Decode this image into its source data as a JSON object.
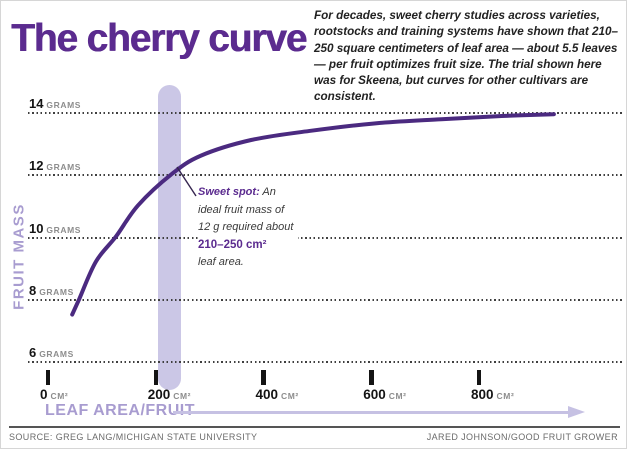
{
  "page": {
    "title": "The cherry curve",
    "intro": "For decades, sweet cherry studies across varieties, rootstocks and training systems have shown that 210–250 square centimeters of leaf area — about 5.5 leaves — per fruit optimizes fruit size. The trial shown here was for Skeena, but curves for other cultivars are consistent.",
    "source_left": "SOURCE: GREG LANG/MICHIGAN STATE UNIVERSITY",
    "credit_right": "JARED JOHNSON/GOOD FRUIT GROWER"
  },
  "axes": {
    "y_label": "FRUIT MASS",
    "y_tick_suffix": "GRAMS",
    "x_label": "LEAF AREA/FRUIT",
    "x_tick_suffix": "CM²"
  },
  "annotation": {
    "label": "Sweet spot:",
    "line1_rest": " An",
    "line2": "ideal fruit mass of",
    "line3": "12 g required about",
    "line4": "210–250 cm²",
    "line5": "leaf area."
  },
  "colors": {
    "title_purple": "#5b2b8f",
    "curve_purple": "#4b2a80",
    "band_lavender": "#cbc7e6",
    "axis_light_purple": "#a89cd0",
    "arrow_lavender": "#c6c1e3",
    "grid_gray": "#3f3f3f",
    "unit_gray": "#8d8d8d",
    "credit_gray": "#6b6b6b"
  },
  "chart_data": {
    "type": "line",
    "title": "The cherry curve",
    "xlabel": "LEAF AREA/FRUIT",
    "ylabel": "FRUIT MASS",
    "x_unit": "cm² leaf area per fruit",
    "y_unit": "grams fruit mass",
    "x_ticks": [
      0,
      200,
      400,
      600,
      800
    ],
    "y_ticks": [
      14,
      12,
      10,
      8,
      6
    ],
    "xlim": [
      0,
      1065
    ],
    "ylim": [
      5.5,
      14.8
    ],
    "grid": "horizontal-dotted",
    "legend": "none",
    "series": [
      {
        "name": "Skeena sweet cherry fruit mass vs leaf area",
        "color": "#4b2a80",
        "points": [
          [
            45,
            7.5
          ],
          [
            58,
            8.0
          ],
          [
            89,
            9.2
          ],
          [
            126,
            10.0
          ],
          [
            167,
            11.0
          ],
          [
            229,
            12.0
          ],
          [
            284,
            12.6
          ],
          [
            377,
            13.1
          ],
          [
            489,
            13.4
          ],
          [
            610,
            13.64
          ],
          [
            730,
            13.77
          ],
          [
            842,
            13.87
          ],
          [
            939,
            13.93
          ]
        ]
      }
    ],
    "highlight_band": {
      "x0": 210,
      "x1": 250,
      "note": "optimal leaf area range"
    },
    "annotation_text": "Sweet spot: An ideal fruit mass of 12 g required about 210–250 cm² leaf area.",
    "annotation_target": {
      "x": 229,
      "y": 12
    }
  }
}
